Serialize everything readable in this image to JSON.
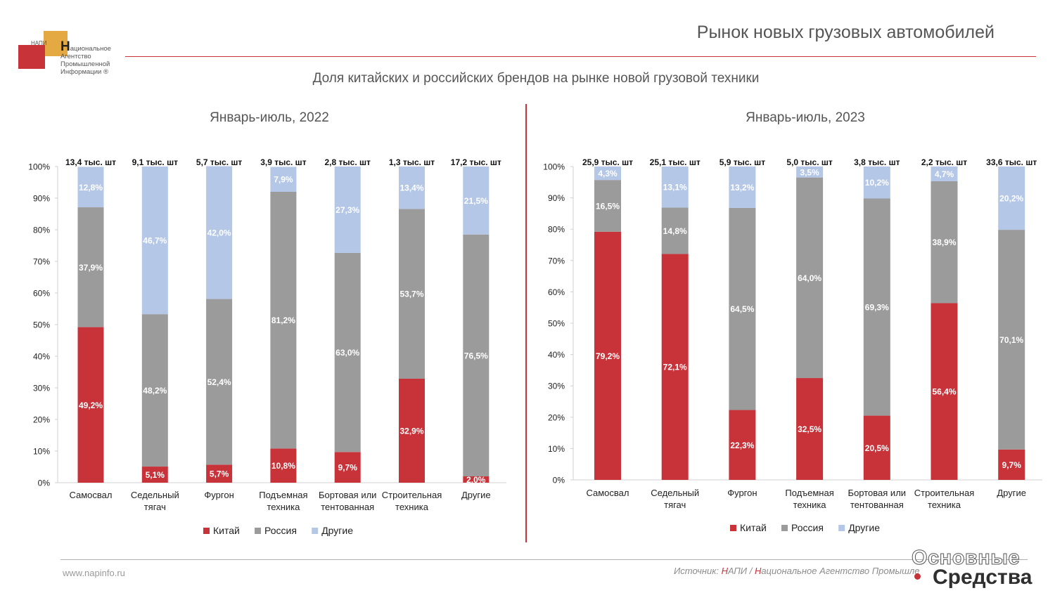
{
  "header": {
    "title": "Рынок новых грузовых автомобилей",
    "subtitle": "Доля китайских и российских брендов на рынке новой грузовой техники"
  },
  "logo": {
    "abbr": "НАПИ",
    "line1": "ациональное",
    "line2": "Агентство",
    "line3": "Промышленной",
    "line4": "Информации ®",
    "big_letter": "Н"
  },
  "footer": {
    "website": "www.napinfo.ru",
    "source_prefix": "Источник: ",
    "source_n1": "Н",
    "source_mid": "АПИ / ",
    "source_n2": "Н",
    "source_rest": "ациональное Агентство Промышле"
  },
  "watermark": {
    "line1": "Основные",
    "line2": "Средства"
  },
  "colors": {
    "china": "#c8333a",
    "russia": "#9b9b9b",
    "other": "#b4c7e7",
    "accent": "#c8333a"
  },
  "chart_data": [
    {
      "type": "bar",
      "stacked": true,
      "title": "Январь-июль, 2022",
      "categories": [
        "Самосвал",
        "Седельный тягач",
        "Фургон",
        "Подъемная техника",
        "Бортовая или тентованная",
        "Строительная техника",
        "Другие"
      ],
      "category_lines": [
        [
          "Самосвал"
        ],
        [
          "Седельный",
          "тягач"
        ],
        [
          "Фургон"
        ],
        [
          "Подъемная",
          "техника"
        ],
        [
          "Бортовая или",
          "тентованная"
        ],
        [
          "Строительная",
          "техника"
        ],
        [
          "Другие"
        ]
      ],
      "totals": [
        "13,4 тыс. шт",
        "9,1 тыс. шт",
        "5,7 тыс. шт",
        "3,9 тыс. шт",
        "2,8 тыс. шт",
        "1,3 тыс. шт",
        "17,2 тыс. шт"
      ],
      "series": [
        {
          "name": "Китай",
          "values": [
            49.2,
            5.1,
            5.7,
            10.8,
            9.7,
            32.9,
            2.0
          ],
          "labels": [
            "49,2%",
            "5,1%",
            "5,7%",
            "10,8%",
            "9,7%",
            "32,9%",
            "2,0%"
          ]
        },
        {
          "name": "Россия",
          "values": [
            37.9,
            48.2,
            52.4,
            81.2,
            63.0,
            53.7,
            76.5
          ],
          "labels": [
            "37,9%",
            "48,2%",
            "52,4%",
            "81,2%",
            "63,0%",
            "53,7%",
            "76,5%"
          ]
        },
        {
          "name": "Другие",
          "values": [
            12.8,
            46.7,
            42.0,
            7.9,
            27.3,
            13.4,
            21.5
          ],
          "labels": [
            "12,8%",
            "46,7%",
            "42,0%",
            "7,9%",
            "27,3%",
            "13,4%",
            "21,5%"
          ]
        }
      ],
      "y_ticks": [
        "0%",
        "10%",
        "20%",
        "30%",
        "40%",
        "50%",
        "60%",
        "70%",
        "80%",
        "90%",
        "100%"
      ],
      "ylim": [
        0,
        100
      ],
      "grid": false,
      "legend": "bottom"
    },
    {
      "type": "bar",
      "stacked": true,
      "title": "Январь-июль, 2023",
      "categories": [
        "Самосвал",
        "Седельный тягач",
        "Фургон",
        "Подъемная техника",
        "Бортовая или тентованная",
        "Строительная техника",
        "Другие"
      ],
      "category_lines": [
        [
          "Самосвал"
        ],
        [
          "Седельный",
          "тягач"
        ],
        [
          "Фургон"
        ],
        [
          "Подъемная",
          "техника"
        ],
        [
          "Бортовая или",
          "тентованная"
        ],
        [
          "Строительная",
          "техника"
        ],
        [
          "Другие"
        ]
      ],
      "totals": [
        "25,9 тыс. шт",
        "25,1 тыс. шт",
        "5,9 тыс. шт",
        "5,0 тыс. шт",
        "3,8 тыс. шт",
        "2,2 тыс. шт",
        "33,6 тыс. шт"
      ],
      "series": [
        {
          "name": "Китай",
          "values": [
            79.2,
            72.1,
            22.3,
            32.5,
            20.5,
            56.4,
            9.7
          ],
          "labels": [
            "79,2%",
            "72,1%",
            "22,3%",
            "32,5%",
            "20,5%",
            "56,4%",
            "9,7%"
          ]
        },
        {
          "name": "Россия",
          "values": [
            16.5,
            14.8,
            64.5,
            64.0,
            69.3,
            38.9,
            70.1
          ],
          "labels": [
            "16,5%",
            "14,8%",
            "64,5%",
            "64,0%",
            "69,3%",
            "38,9%",
            "70,1%"
          ]
        },
        {
          "name": "Другие",
          "values": [
            4.3,
            13.1,
            13.2,
            3.5,
            10.2,
            4.7,
            20.2
          ],
          "labels": [
            "4,3%",
            "13,1%",
            "13,2%",
            "3,5%",
            "10,2%",
            "4,7%",
            "20,2%"
          ]
        }
      ],
      "y_ticks": [
        "0%",
        "10%",
        "20%",
        "30%",
        "40%",
        "50%",
        "60%",
        "70%",
        "80%",
        "90%",
        "100%"
      ],
      "ylim": [
        0,
        100
      ],
      "grid": false,
      "legend": "bottom"
    }
  ]
}
